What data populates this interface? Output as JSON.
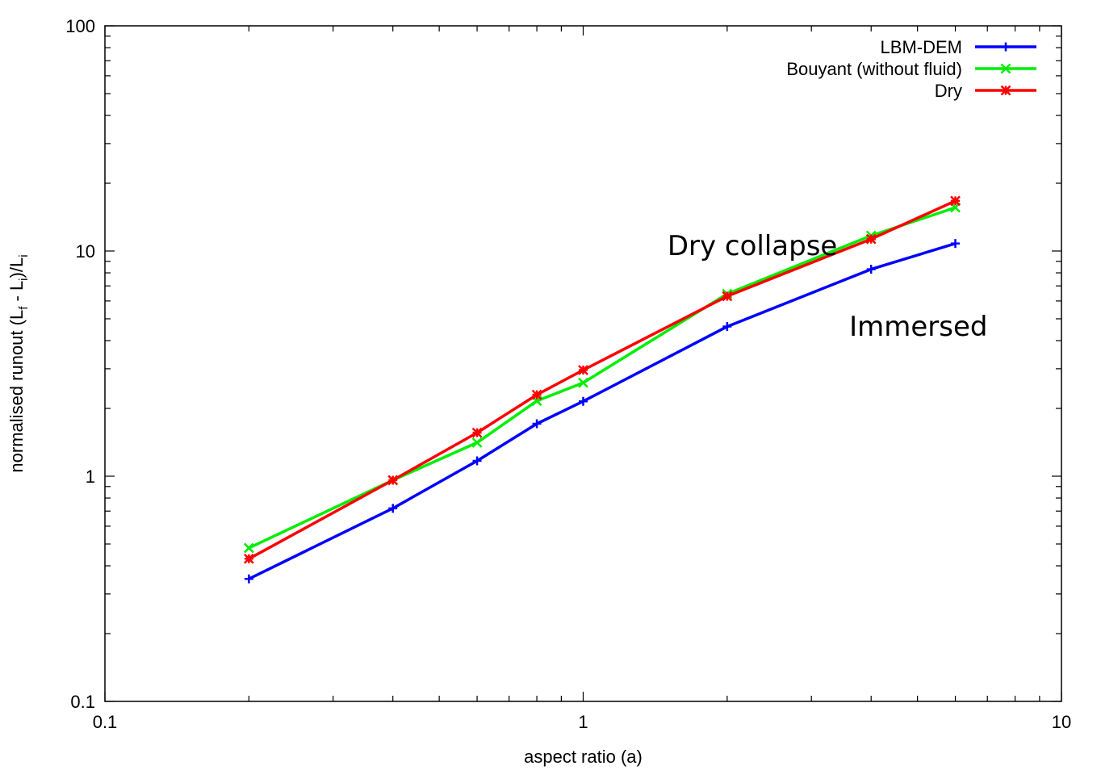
{
  "chart_data": {
    "type": "line",
    "title": "",
    "xlabel": "aspect ratio (a)",
    "ylabel": "normalised runout (L_f - L_i)/L_i",
    "xscale": "log",
    "yscale": "log",
    "xlim": [
      0.1,
      10
    ],
    "ylim": [
      0.1,
      100
    ],
    "xticks": [
      "0.1",
      "1",
      "10"
    ],
    "yticks": [
      "0.1",
      "1",
      "10",
      "100"
    ],
    "grid": false,
    "legend_position": "top-right",
    "series": [
      {
        "name": "LBM-DEM",
        "color": "#0000ff",
        "marker": "plus",
        "x": [
          0.2,
          0.4,
          0.6,
          0.8,
          1.0,
          2.0,
          4.0,
          6.0
        ],
        "y": [
          0.35,
          0.72,
          1.17,
          1.71,
          2.15,
          4.62,
          8.3,
          10.8
        ]
      },
      {
        "name": "Bouyant (without fluid)",
        "color": "#00ee00",
        "marker": "cross",
        "x": [
          0.2,
          0.4,
          0.6,
          0.8,
          1.0,
          2.0,
          4.0,
          6.0
        ],
        "y": [
          0.48,
          0.96,
          1.41,
          2.16,
          2.6,
          6.45,
          11.7,
          15.6
        ]
      },
      {
        "name": "Dry",
        "color": "#ff0000",
        "marker": "star",
        "x": [
          0.2,
          0.4,
          0.6,
          0.8,
          1.0,
          2.0,
          4.0,
          6.0
        ],
        "y": [
          0.43,
          0.96,
          1.56,
          2.3,
          2.96,
          6.3,
          11.3,
          16.7
        ]
      }
    ],
    "annotations": [
      {
        "text": "Dry collapse",
        "x": 1.5,
        "y": 9.6
      },
      {
        "text": "Immersed",
        "x": 3.6,
        "y": 4.2
      }
    ]
  }
}
